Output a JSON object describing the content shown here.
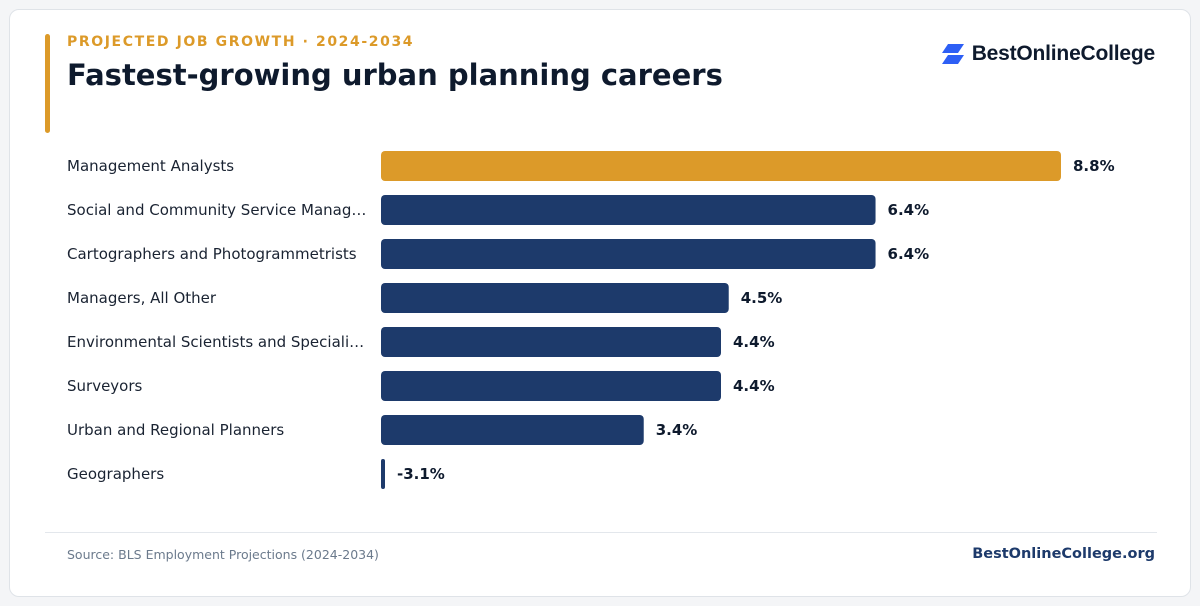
{
  "header": {
    "eyebrow": "PROJECTED JOB GROWTH · 2024-2034",
    "title": "Fastest-growing urban planning careers"
  },
  "brand": {
    "logo_text": "BestOnlineCollege",
    "logo_icon": "bestonlinecollege-logo-icon",
    "site": "BestOnlineCollege.org"
  },
  "footer": {
    "source": "Source: BLS Employment Projections (2024-2034)"
  },
  "colors": {
    "highlight": "#dc9a29",
    "bar": "#1d3a6b",
    "label": "#1a2332",
    "value": "#0e1a2d",
    "logo": "#2d5ff5"
  },
  "chart_data": {
    "type": "bar",
    "orientation": "horizontal",
    "categories": [
      "Management Analysts",
      "Social and Community Service Manag…",
      "Cartographers and Photogrammetrists",
      "Managers, All Other",
      "Environmental Scientists and Speciali…",
      "Surveyors",
      "Urban and Regional Planners",
      "Geographers"
    ],
    "values": [
      8.8,
      6.4,
      6.4,
      4.5,
      4.4,
      4.4,
      3.4,
      -3.1
    ],
    "value_labels": [
      "8.8%",
      "6.4%",
      "6.4%",
      "4.5%",
      "4.4%",
      "4.4%",
      "3.4%",
      "-3.1%"
    ],
    "highlight_index": 0,
    "unit": "%",
    "xlim": [
      0,
      8.8
    ],
    "grid": false,
    "legend": "none"
  }
}
